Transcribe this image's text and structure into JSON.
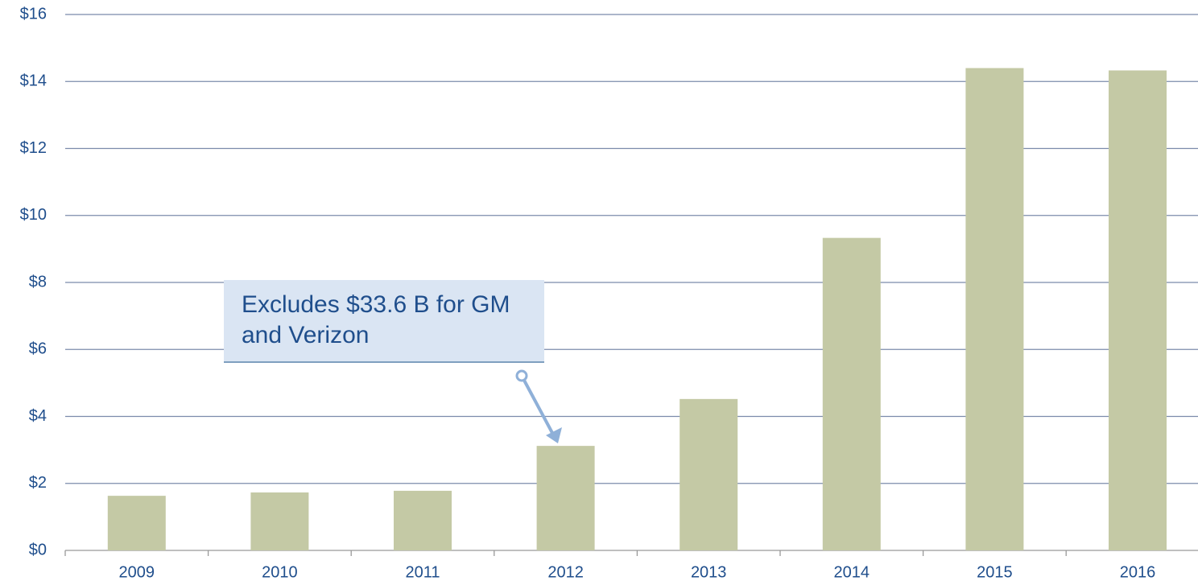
{
  "chart_data": {
    "type": "bar",
    "categories": [
      "2009",
      "2010",
      "2011",
      "2012",
      "2013",
      "2014",
      "2015",
      "2016"
    ],
    "values": [
      1.63,
      1.73,
      1.78,
      3.12,
      4.52,
      9.33,
      14.4,
      14.33
    ],
    "color": "#c4c9a5",
    "ylim": [
      0,
      16
    ],
    "yticks": [
      {
        "value": 0,
        "label": "$0"
      },
      {
        "value": 2,
        "label": "$2"
      },
      {
        "value": 4,
        "label": "$4"
      },
      {
        "value": 6,
        "label": "$6"
      },
      {
        "value": 8,
        "label": "$8"
      },
      {
        "value": 10,
        "label": "$10"
      },
      {
        "value": 12,
        "label": "$12"
      },
      {
        "value": 14,
        "label": "$14"
      },
      {
        "value": 16,
        "label": "$16"
      }
    ],
    "grid": true,
    "annotation": "Excludes $33.6 B for GM and Verizon"
  }
}
